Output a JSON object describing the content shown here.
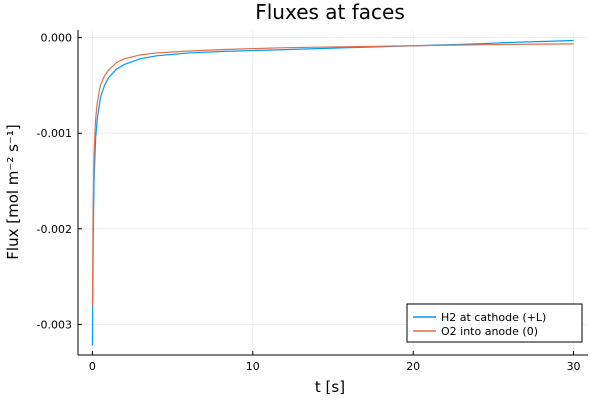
{
  "chart_data": {
    "type": "line",
    "title": "Fluxes at faces",
    "xlabel": "t [s]",
    "ylabel": "Flux [mol m⁻² s⁻¹]",
    "xlim": [
      -0.9,
      30.9
    ],
    "ylim": [
      -0.00332,
      8e-05
    ],
    "x_ticks": [
      0,
      10,
      20,
      30
    ],
    "x_tick_labels": [
      "0",
      "10",
      "20",
      "30"
    ],
    "y_ticks": [
      0.0,
      -0.001,
      -0.002,
      -0.003
    ],
    "y_tick_labels": [
      "0.000",
      "-0.001",
      "-0.002",
      "-0.003"
    ],
    "grid": true,
    "legend_position": "bottom-right",
    "series": [
      {
        "name": "H2 at cathode (+L)",
        "color": "#009AFA",
        "x": [
          0,
          0.05,
          0.1,
          0.2,
          0.3,
          0.5,
          0.75,
          1,
          1.5,
          2,
          3,
          4,
          5,
          6,
          8,
          10,
          12,
          14,
          16,
          18,
          20,
          22,
          24,
          26,
          28,
          30
        ],
        "y": [
          -0.00322,
          -0.0021,
          -0.0015,
          -0.00105,
          -0.00085,
          -0.00063,
          -0.0005,
          -0.00042,
          -0.00033,
          -0.00028,
          -0.00022,
          -0.00019,
          -0.000175,
          -0.00016,
          -0.000145,
          -0.000135,
          -0.000125,
          -0.000115,
          -0.000105,
          -9.5e-05,
          -8.5e-05,
          -7.5e-05,
          -6.5e-05,
          -5e-05,
          -4e-05,
          -3e-05
        ]
      },
      {
        "name": "O2 into anode (0)",
        "color": "#E36F47",
        "x": [
          0,
          0.05,
          0.1,
          0.2,
          0.3,
          0.5,
          0.75,
          1,
          1.5,
          2,
          3,
          4,
          5,
          6,
          8,
          10,
          12,
          14,
          16,
          18,
          20,
          22,
          24,
          26,
          28,
          30
        ],
        "y": [
          -0.0028,
          -0.0017,
          -0.0012,
          -0.00085,
          -0.00068,
          -0.0005,
          -0.0004,
          -0.00034,
          -0.00026,
          -0.00022,
          -0.00018,
          -0.00016,
          -0.00015,
          -0.00014,
          -0.000125,
          -0.000115,
          -0.000105,
          -0.0001,
          -9.5e-05,
          -9e-05,
          -8.5e-05,
          -8e-05,
          -7.5e-05,
          -7e-05,
          -6.8e-05,
          -6.5e-05
        ]
      }
    ]
  }
}
